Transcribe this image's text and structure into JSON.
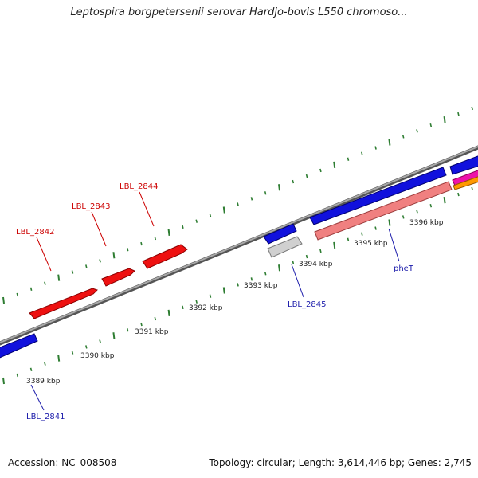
{
  "title": "Leptospira borgpetersenii serovar Hardjo-bovis L550 chromoso...",
  "footer": {
    "accession": "Accession: NC_008508",
    "summary": "Topology: circular; Length: 3,614,446 bp; Genes: 2,745"
  },
  "colors": {
    "backbone": "#888888",
    "tick": "#2e7d32",
    "forward_gene": "#ee1111",
    "forward_label": "#cc0000",
    "reverse_gene": "#1111dd",
    "reverse_label": "#1a1aaa",
    "pseudo_gene": "#cccccc",
    "pink_gene": "#f08080",
    "magenta_gene": "#ee11aa",
    "orange_gene": "#ff9900"
  },
  "ticks": [
    {
      "label": "3389 kbp"
    },
    {
      "label": "3390 kbp"
    },
    {
      "label": "3391 kbp"
    },
    {
      "label": "3392 kbp"
    },
    {
      "label": "3393 kbp"
    },
    {
      "label": "3394 kbp"
    },
    {
      "label": "3395 kbp"
    },
    {
      "label": "3396 kbp"
    }
  ],
  "gene_labels": [
    {
      "text": "LBL_2842"
    },
    {
      "text": "LBL_2843"
    },
    {
      "text": "LBL_2844"
    },
    {
      "text": "LBL_2841"
    },
    {
      "text": "LBL_2845"
    },
    {
      "text": "pheT"
    }
  ]
}
